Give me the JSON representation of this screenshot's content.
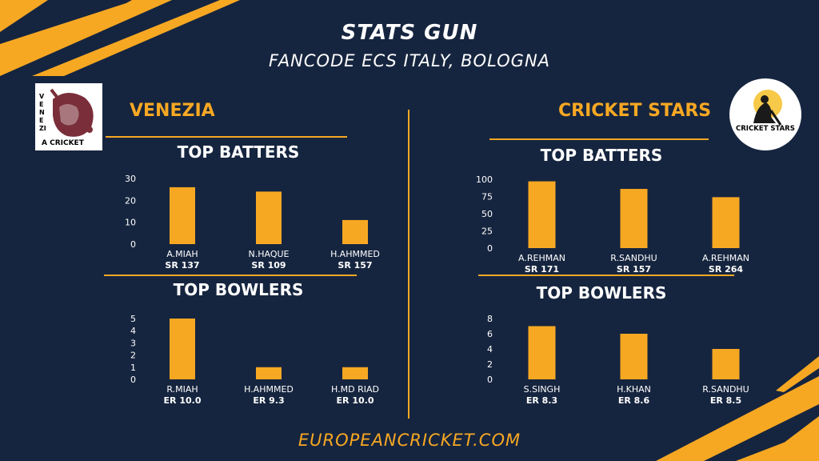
{
  "header": {
    "title": "STATS GUN",
    "subtitle": "FANCODE ECS ITALY, BOLOGNA"
  },
  "footer": {
    "text": "EUROPEANCRICKET.COM"
  },
  "colors": {
    "background": "#16253f",
    "accent": "#f7a823",
    "text": "#ffffff"
  },
  "left_team": {
    "name": "VENEZIA",
    "logo_text": "A CRICKET",
    "logo_side_text": "VENEZI",
    "batters_title": "TOP BATTERS",
    "bowlers_title": "TOP BOWLERS"
  },
  "right_team": {
    "name": "CRICKET STARS",
    "logo_text": "CRICKET STARS",
    "batters_title": "TOP BATTERS",
    "bowlers_title": "TOP BOWLERS"
  },
  "chart_data": [
    {
      "id": "venezia-batters",
      "type": "bar",
      "title": "TOP BATTERS",
      "categories": [
        "A.MIAH",
        "N.HAQUE",
        "H.AHMMED"
      ],
      "values": [
        26,
        24,
        11
      ],
      "stats": [
        "SR 137",
        "SR 109",
        "SR 157"
      ],
      "ylim": [
        0,
        30
      ],
      "yticks": [
        0,
        10,
        20,
        30
      ]
    },
    {
      "id": "venezia-bowlers",
      "type": "bar",
      "title": "TOP BOWLERS",
      "categories": [
        "R.MIAH",
        "H.AHMMED",
        "H.MD RIAD"
      ],
      "values": [
        5,
        1,
        1
      ],
      "stats": [
        "ER 10.0",
        "ER 9.3",
        "ER 10.0"
      ],
      "ylim": [
        0,
        5
      ],
      "yticks": [
        0,
        1,
        2,
        3,
        4,
        5
      ]
    },
    {
      "id": "stars-batters",
      "type": "bar",
      "title": "TOP BATTERS",
      "categories": [
        "A.REHMAN",
        "R.SANDHU",
        "A.REHMAN"
      ],
      "values": [
        97,
        86,
        74
      ],
      "stats": [
        "SR 171",
        "SR 157",
        "SR 264"
      ],
      "ylim": [
        0,
        100
      ],
      "yticks": [
        0,
        25,
        50,
        75,
        100
      ]
    },
    {
      "id": "stars-bowlers",
      "type": "bar",
      "title": "TOP BOWLERS",
      "categories": [
        "S.SINGH",
        "H.KHAN",
        "R.SANDHU"
      ],
      "values": [
        7,
        6,
        4
      ],
      "stats": [
        "ER 8.3",
        "ER 8.6",
        "ER 8.5"
      ],
      "ylim": [
        0,
        8
      ],
      "yticks": [
        0,
        2,
        4,
        6,
        8
      ]
    }
  ]
}
